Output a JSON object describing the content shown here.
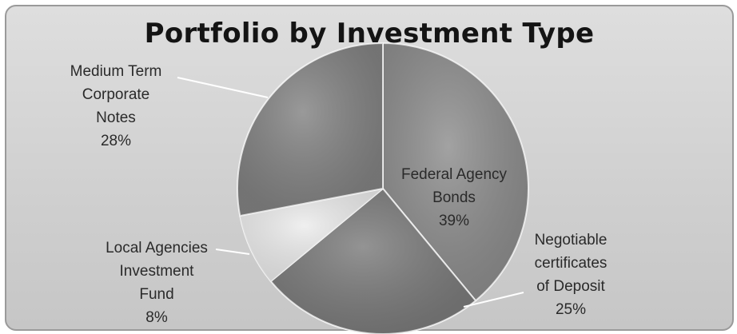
{
  "chart_data": {
    "type": "pie",
    "title": "Portfolio by Investment Type",
    "slices": [
      {
        "label_lines": [
          "Federal Agency",
          "Bonds",
          "39%"
        ],
        "value": 39,
        "color": "#8e8e8e"
      },
      {
        "label_lines": [
          "Negotiable",
          "certificates",
          "of Deposit",
          "25%"
        ],
        "value": 25,
        "color": "#7c7c7c"
      },
      {
        "label_lines": [
          "Local Agencies",
          "Investment",
          "Fund",
          "8%"
        ],
        "value": 8,
        "color": "#ececec"
      },
      {
        "label_lines": [
          "Medium Term",
          "Corporate",
          "Notes",
          "28%"
        ],
        "value": 28,
        "color": "#838383"
      }
    ]
  }
}
